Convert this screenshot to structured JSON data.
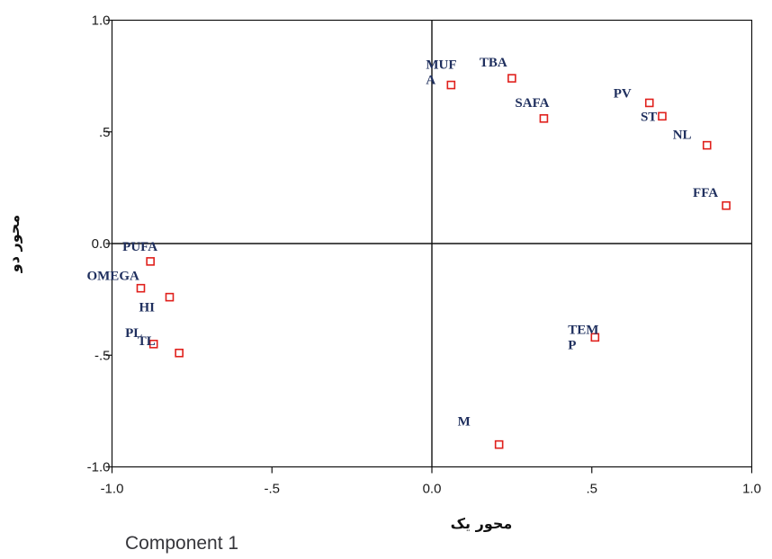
{
  "chart_data": {
    "type": "scatter",
    "xlim": [
      -1.0,
      1.0
    ],
    "ylim": [
      -1.0,
      1.0
    ],
    "x_ticks": [
      -1.0,
      -0.5,
      0.0,
      0.5,
      1.0
    ],
    "x_tick_labels": [
      "-1.0",
      "-.5",
      "0.0",
      ".5",
      "1.0"
    ],
    "y_ticks": [
      1.0,
      0.5,
      0.0,
      -0.5,
      -1.0
    ],
    "y_tick_labels": [
      "1.0",
      ".5",
      "0.0",
      "-.5",
      "-1.0"
    ],
    "xlabel": "محور یک",
    "ylabel": "محور دو",
    "footer": "Component 1",
    "marker_color": "#e0201c",
    "label_color": "#1f2f5e",
    "reference_lines": [
      {
        "axis": "x",
        "value": 0
      },
      {
        "axis": "y",
        "value": 0
      }
    ],
    "points": [
      {
        "label": "MUF|A",
        "x": 0.06,
        "y": 0.71
      },
      {
        "label": "TBA",
        "x": 0.25,
        "y": 0.74
      },
      {
        "label": "SAFA",
        "x": 0.35,
        "y": 0.56
      },
      {
        "label": "PV",
        "x": 0.68,
        "y": 0.63
      },
      {
        "label": "ST",
        "x": 0.72,
        "y": 0.57
      },
      {
        "label": "NL",
        "x": 0.86,
        "y": 0.44
      },
      {
        "label": "FFA",
        "x": 0.92,
        "y": 0.17
      },
      {
        "label": "PUFA",
        "x": -0.88,
        "y": -0.08
      },
      {
        "label": "OMEGA",
        "x": -0.91,
        "y": -0.2
      },
      {
        "label": "HI",
        "x": -0.82,
        "y": -0.24
      },
      {
        "label": "TL",
        "x": -0.87,
        "y": -0.45
      },
      {
        "label": "PL",
        "x": -0.79,
        "y": -0.49
      },
      {
        "label": "TEM|P",
        "x": 0.51,
        "y": -0.42
      },
      {
        "label": "M",
        "x": 0.21,
        "y": -0.9
      }
    ]
  }
}
